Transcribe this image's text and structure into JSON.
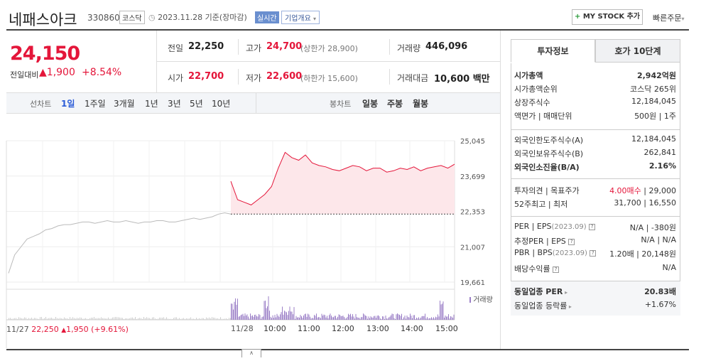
{
  "header": {
    "title": "네패스아크",
    "code": "330860",
    "market_badge": "코스닥",
    "date_text": "2023.11.28 기준(장마감)",
    "realtime_badge": "실시간",
    "corp_overview": "기업개요",
    "my_stock": "MY STOCK 추가",
    "quick_order": "빠른주문"
  },
  "price": {
    "current": "24,150",
    "prev_day_label": "전일대비",
    "change": "1,900",
    "change_rate": "+8.54%"
  },
  "quotes": {
    "prev_label": "전일",
    "prev_value": "22,250",
    "high_label": "고가",
    "high_value": "24,700",
    "upper_limit": "(상한가 28,900)",
    "volume_label": "거래량",
    "volume_value": "446,096",
    "open_label": "시가",
    "open_value": "22,700",
    "low_label": "저가",
    "low_value": "22,600",
    "lower_limit": "(하한가 15,600)",
    "amount_label": "거래대금",
    "amount_value": "10,600 백만"
  },
  "toolbar": {
    "line_label": "선차트",
    "line_options": [
      "1일",
      "1주일",
      "3개월",
      "1년",
      "3년",
      "5년",
      "10년"
    ],
    "candle_label": "봉차트",
    "candle_options": [
      "일봉",
      "주봉",
      "월봉"
    ]
  },
  "chart_data": {
    "type": "line",
    "yticks": [
      "25,045",
      "23,699",
      "22,353",
      "21,007",
      "19,661"
    ],
    "ylim": [
      19661,
      25045
    ],
    "reference_price": 22250,
    "prev_day": {
      "date": "11/27",
      "close": "22,250",
      "change": "1,950",
      "change_rate": "(+9.61%)",
      "color": "#bbbbbb",
      "values": [
        20000,
        20700,
        21000,
        21300,
        21400,
        21500,
        21650,
        21700,
        21800,
        21850,
        21850,
        21900,
        21950,
        21950,
        21900,
        21950,
        22000,
        21950,
        21950,
        22000,
        21950,
        21900,
        21950,
        21950,
        22000,
        22000,
        21950,
        21950,
        22000,
        22050,
        22100,
        22050,
        22100,
        22150,
        22250,
        22300,
        22250
      ]
    },
    "today": {
      "date": "11/28",
      "color": "#e4163a",
      "fill": "#fde7ea",
      "times": [
        "10:00",
        "11:00",
        "12:00",
        "13:00",
        "14:00",
        "15:00"
      ],
      "values": [
        23500,
        22800,
        22700,
        22600,
        22800,
        23000,
        23300,
        24000,
        24600,
        24400,
        24300,
        24500,
        24200,
        24100,
        24050,
        23950,
        23900,
        24000,
        24100,
        24050,
        23900,
        24000,
        24000,
        23850,
        23900,
        24000,
        23950,
        24050,
        23900,
        24000,
        24050,
        24100,
        24000,
        24150
      ]
    },
    "volume_label": "거래량",
    "volume_color": "#9b7fc7"
  },
  "side": {
    "tab_invest": "투자정보",
    "tab_hoga": "호가 10단계",
    "rows1": [
      {
        "label": "시가총액",
        "value": "2,942억원",
        "bold": true
      },
      {
        "label": "시가총액순위",
        "value": "코스닥 265위",
        "bold": false
      },
      {
        "label": "상장주식수",
        "value": "12,184,045",
        "bold": false
      },
      {
        "label": "액면가 | 매매단위",
        "value": "500원 | 1주",
        "bold": false
      }
    ],
    "rows2": [
      {
        "label": "외국인한도주식수(A)",
        "value": "12,184,045"
      },
      {
        "label": "외국인보유주식수(B)",
        "value": "262,841"
      },
      {
        "label": "외국인소진율(B/A)",
        "value": "2.16%"
      }
    ],
    "opinion_label": "투자의견 | 목표주가",
    "opinion_value": "4.00매수",
    "target_value": "29,000",
    "week52_label": "52주최고 | 최저",
    "week52_value": "31,700 | 16,550",
    "per_label": "PER | EPS",
    "per_year": "(2023.09)",
    "per_value": "N/A | -380원",
    "est_per_label": "추정PER | EPS",
    "est_per_value": "N/A | N/A",
    "pbr_label": "PBR | BPS",
    "pbr_year": "(2023.09)",
    "pbr_value": "1.20배 | 20,148원",
    "div_label": "배당수익률",
    "div_value": "N/A",
    "industry_per_label": "동일업종 PER",
    "industry_per_value": "20.83배",
    "industry_rate_label": "동일업종 등락률",
    "industry_rate_value": "+1.67%"
  },
  "collapse_label": "∧"
}
